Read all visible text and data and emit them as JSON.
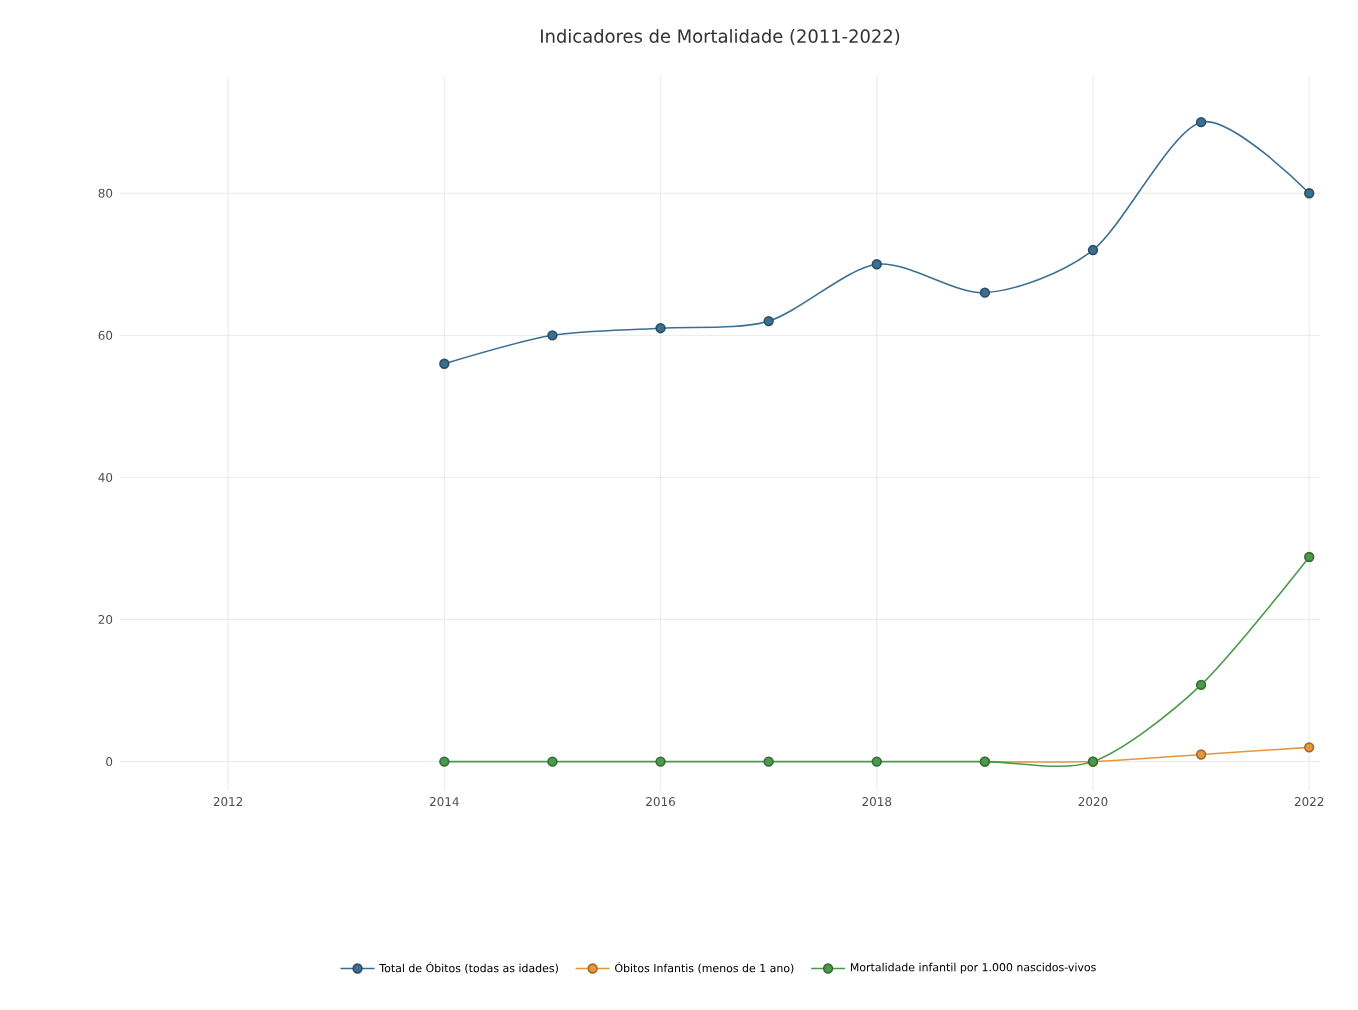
{
  "chart_data": {
    "type": "line",
    "title": "Indicadores de Mortalidade (2011-2022)",
    "xlim": [
      2011,
      2022.1
    ],
    "ylim": [
      -4,
      96.5
    ],
    "xticks": [
      2012,
      2014,
      2016,
      2018,
      2020,
      2022
    ],
    "yticks": [
      0,
      20,
      40,
      60,
      80
    ],
    "grid": true,
    "legend": "bottom",
    "marker": "circle",
    "line_style": "solid",
    "series": [
      {
        "name": "Total de Óbitos (todas as idades)",
        "color": "#3b6f91",
        "x": [
          2014,
          2015,
          2016,
          2017,
          2018,
          2019,
          2020,
          2021,
          2022
        ],
        "values": [
          56,
          60,
          61,
          62,
          70,
          66,
          72,
          90,
          80
        ]
      },
      {
        "name": "Óbitos Infantis (menos de 1 ano)",
        "color": "#e8963c",
        "x": [
          2019,
          2020,
          2021,
          2022
        ],
        "values": [
          0,
          0,
          1,
          2
        ]
      },
      {
        "name": "Mortalidade infantil por 1.000 nascidos-vivos",
        "color": "#4a9a4a",
        "x": [
          2014,
          2015,
          2016,
          2017,
          2018,
          2019,
          2020,
          2021,
          2022
        ],
        "values": [
          0,
          0,
          0,
          0,
          0,
          0,
          0,
          10.8,
          28.8
        ]
      }
    ]
  }
}
